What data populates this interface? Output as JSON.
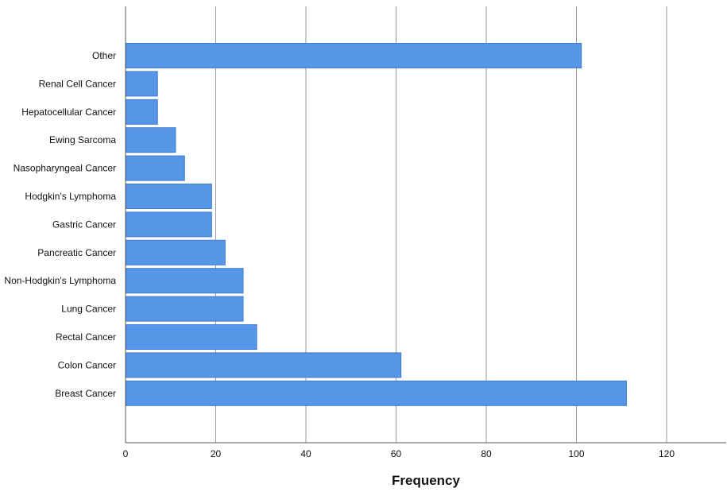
{
  "chart_data": {
    "type": "bar",
    "orientation": "horizontal",
    "categories": [
      "Other",
      "Renal Cell Cancer",
      "Hepatocellular Cancer",
      "Ewing Sarcoma",
      "Nasopharyngeal Cancer",
      "Hodgkin's Lymphoma",
      "Gastric Cancer",
      "Pancreatic Cancer",
      "Non-Hodgkin's Lymphoma",
      "Lung Cancer",
      "Rectal Cancer",
      "Colon Cancer",
      "Breast Cancer"
    ],
    "values": [
      101,
      7,
      7,
      11,
      13,
      19,
      19,
      22,
      26,
      26,
      29,
      61,
      111
    ],
    "xlabel": "Frequency",
    "ylabel": "",
    "xlim": [
      0,
      133
    ],
    "xticks": [
      "0",
      "20",
      "40",
      "60",
      "80",
      "100",
      "120"
    ],
    "grid": "vertical",
    "bar_color": "#5596e6"
  }
}
